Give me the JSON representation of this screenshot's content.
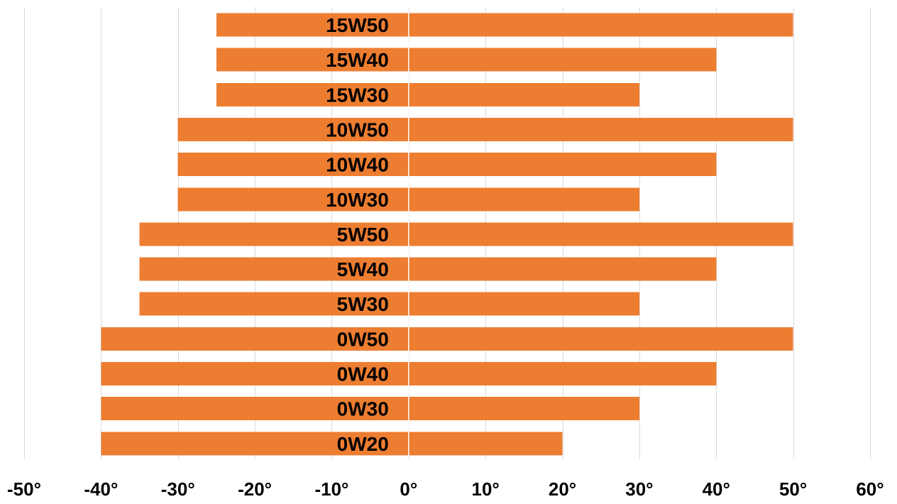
{
  "chart_data": {
    "type": "bar",
    "orientation": "horizontal",
    "categories": [
      "15W50",
      "15W40",
      "15W30",
      "10W50",
      "10W40",
      "10W30",
      "5W50",
      "5W40",
      "5W30",
      "0W50",
      "0W40",
      "0W30",
      "0W20"
    ],
    "series": [
      {
        "values": [
          -25,
          -25,
          -25,
          -30,
          -30,
          -30,
          -35,
          -35,
          -35,
          -40,
          -40,
          -40,
          -40
        ]
      },
      {
        "values": [
          50,
          40,
          30,
          50,
          40,
          30,
          50,
          40,
          30,
          50,
          40,
          30,
          20
        ]
      }
    ],
    "xlim": [
      -50,
      60
    ],
    "xticks": [
      -50,
      -40,
      -30,
      -20,
      -10,
      0,
      10,
      20,
      30,
      40,
      50,
      60
    ],
    "tick_labels": [
      "-50°",
      "-40°",
      "-30°",
      "-20°",
      "-10°",
      "0°",
      "10°",
      "20°",
      "30°",
      "40°",
      "50°",
      "60°"
    ],
    "grid": true,
    "legend": "none",
    "colors": {
      "bar": "#ED7D31",
      "grid": "#D9D9D9",
      "zero_divider": "#FFFFFF"
    }
  }
}
